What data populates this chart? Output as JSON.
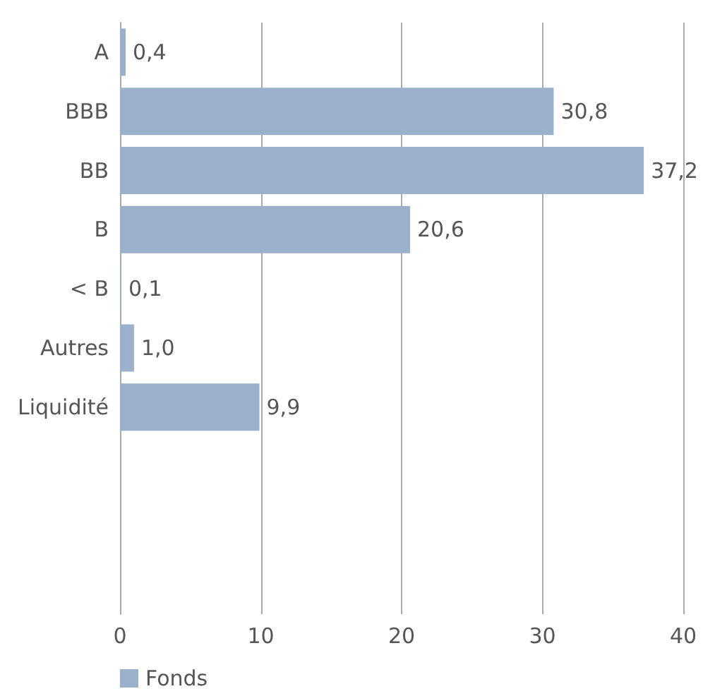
{
  "chart_data": {
    "type": "bar",
    "orientation": "horizontal",
    "categories": [
      "A",
      "BBB",
      "BB",
      "B",
      "< B",
      "Autres",
      "Liquidité",
      null,
      null,
      null
    ],
    "series": [
      {
        "name": "Fonds",
        "color": "#9bb0cb",
        "values": [
          0.4,
          30.8,
          37.2,
          20.6,
          0.1,
          1.0,
          9.9,
          null,
          null,
          null
        ],
        "value_labels": [
          "0,4",
          "30,8",
          "37,2",
          "20,6",
          "0,1",
          "1,0",
          "9,9",
          null,
          null,
          null
        ]
      }
    ],
    "xlim": [
      0,
      40
    ],
    "xticks": [
      0,
      10,
      20,
      30,
      40
    ],
    "grid": "x",
    "legend": "bottom left"
  }
}
